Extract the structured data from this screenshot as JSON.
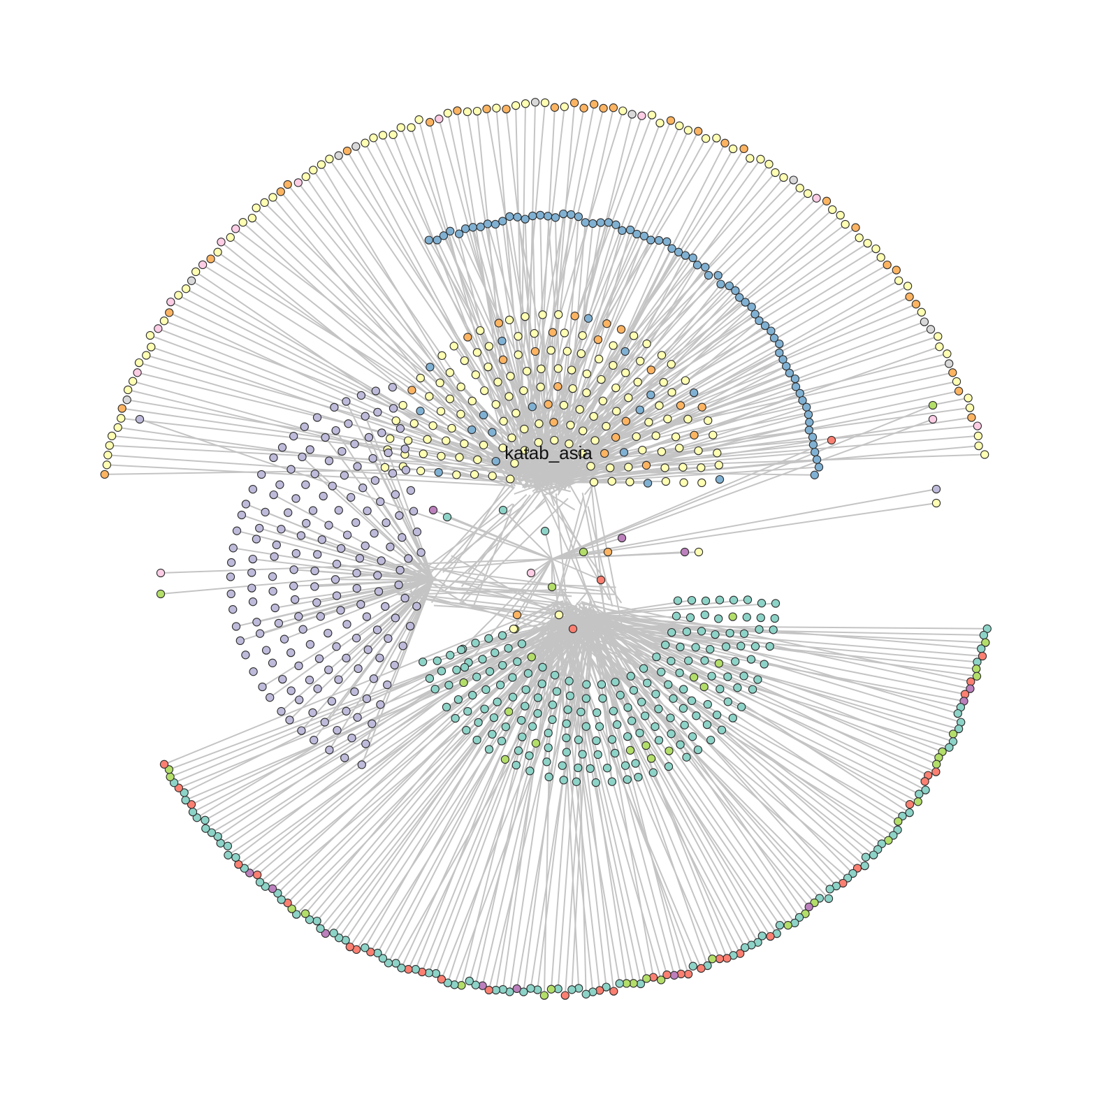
{
  "diagram": {
    "type": "network-graph",
    "center_label": "katab_asia",
    "edge_color": "#c4c4c4",
    "node_stroke": "#2b2b2b",
    "palette": {
      "yellow": "#ffffb3",
      "orange": "#fdb462",
      "pink": "#fccde5",
      "blue": "#80b1d3",
      "lavender": "#bebada",
      "teal": "#8dd3c7",
      "red": "#fb8072",
      "green": "#b3de69",
      "purple": "#bc80bd",
      "gray": "#d9d9d9"
    },
    "clusters": [
      {
        "id": "top-arc",
        "colors": [
          "yellow",
          "orange",
          "pink",
          "gray"
        ]
      },
      {
        "id": "blue-arc",
        "colors": [
          "blue"
        ]
      },
      {
        "id": "yellow-fan",
        "colors": [
          "yellow",
          "orange",
          "blue"
        ]
      },
      {
        "id": "lavender-fan",
        "colors": [
          "lavender"
        ]
      },
      {
        "id": "teal-fan",
        "colors": [
          "teal",
          "green"
        ]
      },
      {
        "id": "bottom-arc",
        "colors": [
          "teal",
          "red",
          "green",
          "purple"
        ]
      }
    ]
  }
}
